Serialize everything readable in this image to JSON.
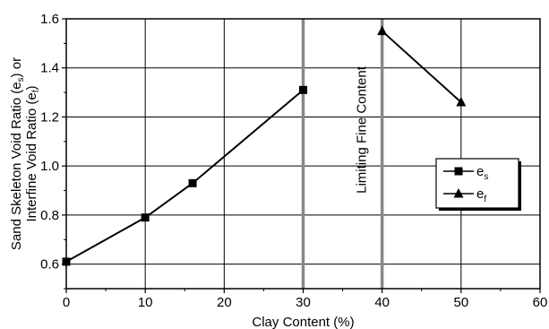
{
  "chart_data": {
    "type": "line",
    "xlabel": "Clay Content (%)",
    "ylabel_line1": "Sand Skeleton Void Ratio (e",
    "ylabel_line1_sub": "s",
    "ylabel_line1_end": ") or",
    "ylabel_line2": "Interfine Void Ratio (e",
    "ylabel_line2_sub": "f",
    "ylabel_line2_end": ")",
    "xlim": [
      0,
      60
    ],
    "ylim": [
      0.5,
      1.6
    ],
    "xticks": [
      0,
      10,
      20,
      30,
      40,
      50,
      60
    ],
    "xtick_labels": [
      "0",
      "10",
      "20",
      "30",
      "40",
      "50",
      "60"
    ],
    "yticks": [
      0.6,
      0.8,
      1.0,
      1.2,
      1.4,
      1.6
    ],
    "ytick_labels": [
      "0.6",
      "0.8",
      "1.0",
      "1.2",
      "1.4",
      "1.6"
    ],
    "grid": true,
    "legend_position": "right",
    "series": [
      {
        "name": "e",
        "name_sub": "s",
        "marker": "square",
        "x": [
          0,
          10,
          16,
          30
        ],
        "y": [
          0.61,
          0.79,
          0.93,
          1.31
        ]
      },
      {
        "name": "e",
        "name_sub": "f",
        "marker": "triangle",
        "x": [
          40,
          50
        ],
        "y": [
          1.55,
          1.26
        ]
      }
    ],
    "annotations": [
      {
        "text": "Limiting Fine Content",
        "x": 35,
        "orientation": "vertical"
      }
    ],
    "vertical_lines": [
      30,
      40
    ]
  }
}
